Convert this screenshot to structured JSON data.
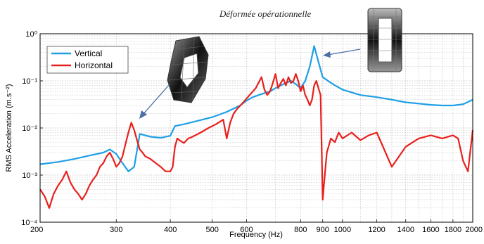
{
  "chart_data": {
    "type": "line",
    "annotation_title": "Déformée opérationnelle",
    "xlabel": "Frequency (Hz)",
    "ylabel": "RMS Acceleration (m.s⁻²)",
    "x_scale": "log",
    "y_scale": "log",
    "xlim": [
      200,
      2000
    ],
    "ylim": [
      0.0001,
      1
    ],
    "x_ticks": [
      200,
      300,
      400,
      500,
      600,
      800,
      900,
      1000,
      1200,
      1400,
      1600,
      1800,
      2000
    ],
    "x_tick_labels": [
      "200",
      "300",
      "400",
      "500",
      "600",
      "800",
      "900",
      "1000",
      "1200",
      "1400",
      "1600",
      "1800",
      "2000"
    ],
    "y_ticks": [
      0.0001,
      0.001,
      0.01,
      0.1,
      1
    ],
    "y_tick_labels": [
      "10⁻⁴",
      "10⁻³",
      "10⁻²",
      "10⁻¹",
      "10⁰"
    ],
    "grid": true,
    "legend_position": "top-left",
    "series": [
      {
        "name": "Vertical",
        "color": "#1f9fe6",
        "x": [
          200,
          220,
          240,
          260,
          280,
          290,
          300,
          310,
          320,
          330,
          340,
          360,
          380,
          400,
          410,
          430,
          460,
          500,
          540,
          580,
          600,
          620,
          640,
          660,
          680,
          700,
          720,
          740,
          760,
          780,
          800,
          820,
          840,
          860,
          880,
          900,
          950,
          1000,
          1100,
          1200,
          1300,
          1400,
          1500,
          1600,
          1700,
          1800,
          1900,
          2000
        ],
        "y": [
          0.0017,
          0.0019,
          0.0022,
          0.0026,
          0.003,
          0.0035,
          0.0028,
          0.0018,
          0.0012,
          0.0015,
          0.0075,
          0.0065,
          0.0062,
          0.0068,
          0.011,
          0.012,
          0.014,
          0.017,
          0.022,
          0.03,
          0.038,
          0.045,
          0.05,
          0.055,
          0.06,
          0.07,
          0.08,
          0.09,
          0.1,
          0.085,
          0.07,
          0.1,
          0.2,
          0.55,
          0.25,
          0.12,
          0.085,
          0.065,
          0.05,
          0.045,
          0.04,
          0.035,
          0.033,
          0.031,
          0.03,
          0.03,
          0.032,
          0.04
        ]
      },
      {
        "name": "Horizontal",
        "color": "#e8201c",
        "x": [
          200,
          205,
          210,
          215,
          220,
          225,
          230,
          235,
          240,
          245,
          250,
          255,
          260,
          265,
          270,
          275,
          280,
          285,
          290,
          295,
          300,
          305,
          310,
          315,
          320,
          325,
          330,
          335,
          340,
          345,
          350,
          360,
          370,
          380,
          390,
          400,
          405,
          410,
          415,
          420,
          430,
          440,
          450,
          470,
          490,
          510,
          530,
          540,
          550,
          560,
          570,
          590,
          610,
          630,
          650,
          660,
          670,
          680,
          690,
          700,
          710,
          720,
          730,
          740,
          750,
          760,
          770,
          780,
          790,
          800,
          810,
          820,
          830,
          840,
          850,
          860,
          870,
          880,
          890,
          900,
          910,
          920,
          940,
          960,
          980,
          1000,
          1050,
          1100,
          1150,
          1200,
          1300,
          1400,
          1500,
          1600,
          1700,
          1800,
          1850,
          1900,
          1950,
          2000
        ],
        "y": [
          0.0005,
          0.00035,
          0.0002,
          0.0004,
          0.0006,
          0.0008,
          0.0012,
          0.0007,
          0.0005,
          0.0004,
          0.0003,
          0.0004,
          0.0006,
          0.0008,
          0.001,
          0.0015,
          0.0018,
          0.0025,
          0.003,
          0.0022,
          0.0015,
          0.0018,
          0.0025,
          0.0045,
          0.008,
          0.013,
          0.009,
          0.0055,
          0.0035,
          0.003,
          0.0025,
          0.0022,
          0.0018,
          0.0015,
          0.0012,
          0.0012,
          0.0015,
          0.004,
          0.006,
          0.0055,
          0.0048,
          0.006,
          0.0065,
          0.008,
          0.01,
          0.012,
          0.015,
          0.006,
          0.013,
          0.02,
          0.025,
          0.035,
          0.05,
          0.07,
          0.12,
          0.065,
          0.05,
          0.06,
          0.09,
          0.14,
          0.07,
          0.09,
          0.11,
          0.08,
          0.12,
          0.09,
          0.1,
          0.14,
          0.1,
          0.06,
          0.08,
          0.05,
          0.04,
          0.03,
          0.04,
          0.08,
          0.1,
          0.07,
          0.05,
          0.0003,
          0.001,
          0.003,
          0.006,
          0.005,
          0.008,
          0.006,
          0.008,
          0.0055,
          0.007,
          0.008,
          0.0015,
          0.004,
          0.006,
          0.007,
          0.006,
          0.007,
          0.006,
          0.002,
          0.0012,
          0.009
        ]
      }
    ]
  }
}
